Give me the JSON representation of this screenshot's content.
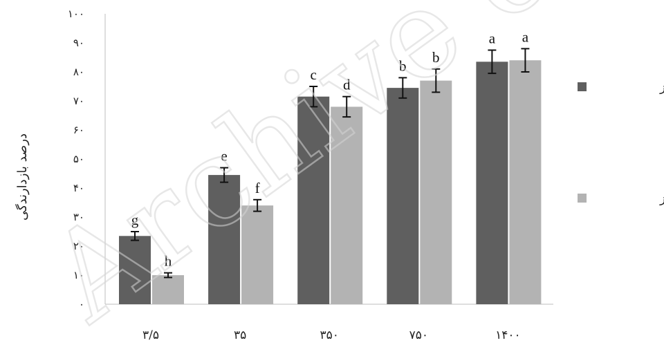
{
  "chart_data": {
    "type": "bar",
    "categories": [
      "۳/۵",
      "۳۵",
      "۳۵۰",
      "۷۵۰",
      "۱۴۰۰"
    ],
    "series": [
      {
        "name": "سه روز",
        "color": "#5f5f5f",
        "values": [
          23.5,
          44.5,
          71.5,
          74.5,
          83.5
        ],
        "errors": [
          1.5,
          2.5,
          3.5,
          3.5,
          4.0
        ],
        "labels": [
          "g",
          "e",
          "c",
          "b",
          "a"
        ]
      },
      {
        "name": "هفت روز",
        "color": "#b3b3b3",
        "values": [
          10,
          34,
          68,
          77,
          84
        ],
        "errors": [
          0.8,
          2.0,
          3.5,
          4.0,
          4.0
        ],
        "labels": [
          "h",
          "f",
          "d",
          "b",
          "a"
        ]
      }
    ],
    "ylabel": "درصد بازدارندگی",
    "xlabel": "",
    "ylim": [
      0,
      100
    ],
    "yticks": [
      {
        "value": 0,
        "label": "۰"
      },
      {
        "value": 10,
        "label": "۱۰"
      },
      {
        "value": 20,
        "label": "۲۰"
      },
      {
        "value": 30,
        "label": "۳۰"
      },
      {
        "value": 40,
        "label": "۴۰"
      },
      {
        "value": 50,
        "label": "۵۰"
      },
      {
        "value": 60,
        "label": "۶۰"
      },
      {
        "value": 70,
        "label": "۷۰"
      },
      {
        "value": 80,
        "label": "۸۰"
      },
      {
        "value": 90,
        "label": "۹۰"
      },
      {
        "value": 100,
        "label": "۱۰۰"
      }
    ],
    "grid": false,
    "legend_position": "right"
  },
  "watermark": {
    "text": "Archive of SID"
  }
}
